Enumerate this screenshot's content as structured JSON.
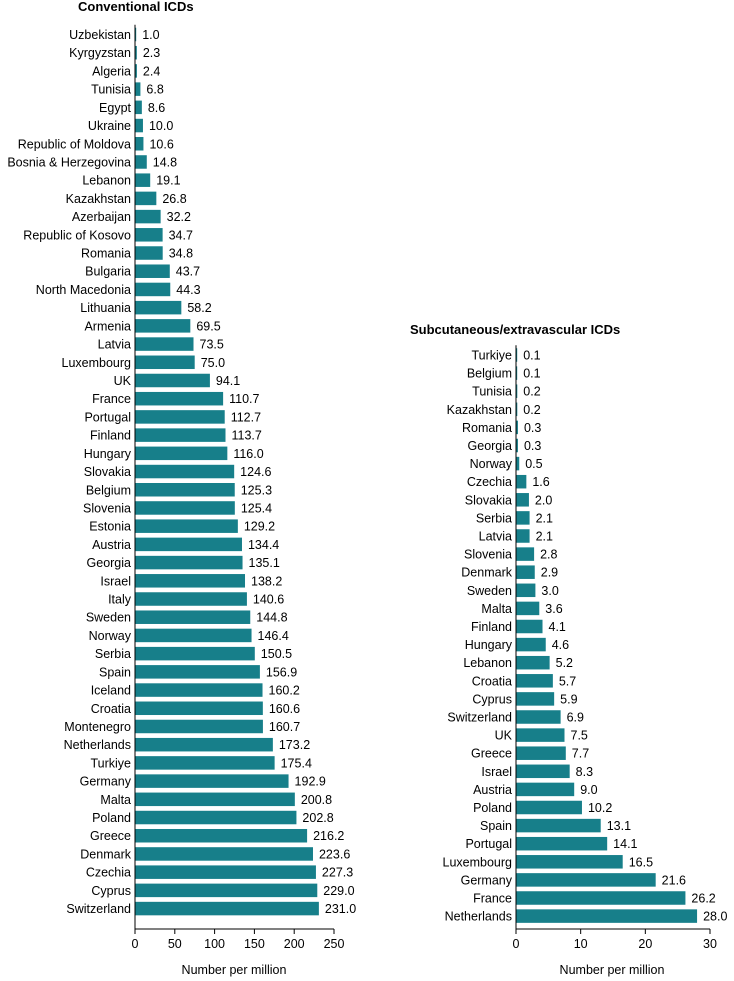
{
  "colors": {
    "bar": "#177f8a",
    "axis": "#000000",
    "text": "#000000"
  },
  "chart_data": [
    {
      "type": "bar",
      "orientation": "horizontal",
      "title": "Conventional ICDs",
      "xlabel": "Number per million",
      "xlim": [
        0,
        250
      ],
      "xticks": [
        0,
        50,
        100,
        150,
        200,
        250
      ],
      "categories": [
        "Uzbekistan",
        "Kyrgyzstan",
        "Algeria",
        "Tunisia",
        "Egypt",
        "Ukraine",
        "Republic of Moldova",
        "Bosnia & Herzegovina",
        "Lebanon",
        "Kazakhstan",
        "Azerbaijan",
        "Republic of Kosovo",
        "Romania",
        "Bulgaria",
        "North Macedonia",
        "Lithuania",
        "Armenia",
        "Latvia",
        "Luxembourg",
        "UK",
        "France",
        "Portugal",
        "Finland",
        "Hungary",
        "Slovakia",
        "Belgium",
        "Slovenia",
        "Estonia",
        "Austria",
        "Georgia",
        "Israel",
        "Italy",
        "Sweden",
        "Norway",
        "Serbia",
        "Spain",
        "Iceland",
        "Croatia",
        "Montenegro",
        "Netherlands",
        "Turkiye",
        "Germany",
        "Malta",
        "Poland",
        "Greece",
        "Denmark",
        "Czechia",
        "Cyprus",
        "Switzerland"
      ],
      "values": [
        1.0,
        2.3,
        2.4,
        6.8,
        8.6,
        10.0,
        10.6,
        14.8,
        19.1,
        26.8,
        32.2,
        34.7,
        34.8,
        43.7,
        44.3,
        58.2,
        69.5,
        73.5,
        75.0,
        94.1,
        110.7,
        112.7,
        113.7,
        116.0,
        124.6,
        125.3,
        125.4,
        129.2,
        134.4,
        135.1,
        138.2,
        140.6,
        144.8,
        146.4,
        150.5,
        156.9,
        160.2,
        160.6,
        160.7,
        173.2,
        175.4,
        192.9,
        200.8,
        202.8,
        216.2,
        223.6,
        227.3,
        229.0,
        231.0
      ],
      "value_labels": [
        "1.0",
        "2.3",
        "2.4",
        "6.8",
        "8.6",
        "10.0",
        "10.6",
        "14.8",
        "19.1",
        "26.8",
        "32.2",
        "34.7",
        "34.8",
        "43.7",
        "44.3",
        "58.2",
        "69.5",
        "73.5",
        "75.0",
        "94.1",
        "110.7",
        "112.7",
        "113.7",
        "116.0",
        "124.6",
        "125.3",
        "125.4",
        "129.2",
        "134.4",
        "135.1",
        "138.2",
        "140.6",
        "144.8",
        "146.4",
        "150.5",
        "156.9",
        "160.2",
        "160.6",
        "160.7",
        "173.2",
        "175.4",
        "192.9",
        "200.8",
        "202.8",
        "216.2",
        "223.6",
        "227.3",
        "229.0",
        "231.0"
      ]
    },
    {
      "type": "bar",
      "orientation": "horizontal",
      "title": "Subcutaneous/extravascular ICDs",
      "xlabel": "Number per million",
      "xlim": [
        0,
        30
      ],
      "xticks": [
        0,
        10,
        20,
        30
      ],
      "categories": [
        "Turkiye",
        "Belgium",
        "Tunisia",
        "Kazakhstan",
        "Romania",
        "Georgia",
        "Norway",
        "Czechia",
        "Slovakia",
        "Serbia",
        "Latvia",
        "Slovenia",
        "Denmark",
        "Sweden",
        "Malta",
        "Finland",
        "Hungary",
        "Lebanon",
        "Croatia",
        "Cyprus",
        "Switzerland",
        "UK",
        "Greece",
        "Israel",
        "Austria",
        "Poland",
        "Spain",
        "Portugal",
        "Luxembourg",
        "Germany",
        "France",
        "Netherlands"
      ],
      "values": [
        0.1,
        0.1,
        0.2,
        0.2,
        0.3,
        0.3,
        0.5,
        1.6,
        2.0,
        2.1,
        2.1,
        2.8,
        2.9,
        3.0,
        3.6,
        4.1,
        4.6,
        5.2,
        5.7,
        5.9,
        6.9,
        7.5,
        7.7,
        8.3,
        9.0,
        10.2,
        13.1,
        14.1,
        16.5,
        21.6,
        26.2,
        28.0
      ],
      "value_labels": [
        "0.1",
        "0.1",
        "0.2",
        "0.2",
        "0.3",
        "0.3",
        "0.5",
        "1.6",
        "2.0",
        "2.1",
        "2.1",
        "2.8",
        "2.9",
        "3.0",
        "3.6",
        "4.1",
        "4.6",
        "5.2",
        "5.7",
        "5.9",
        "6.9",
        "7.5",
        "7.7",
        "8.3",
        "9.0",
        "10.2",
        "13.1",
        "14.1",
        "16.5",
        "21.6",
        "26.2",
        "28.0"
      ]
    }
  ]
}
